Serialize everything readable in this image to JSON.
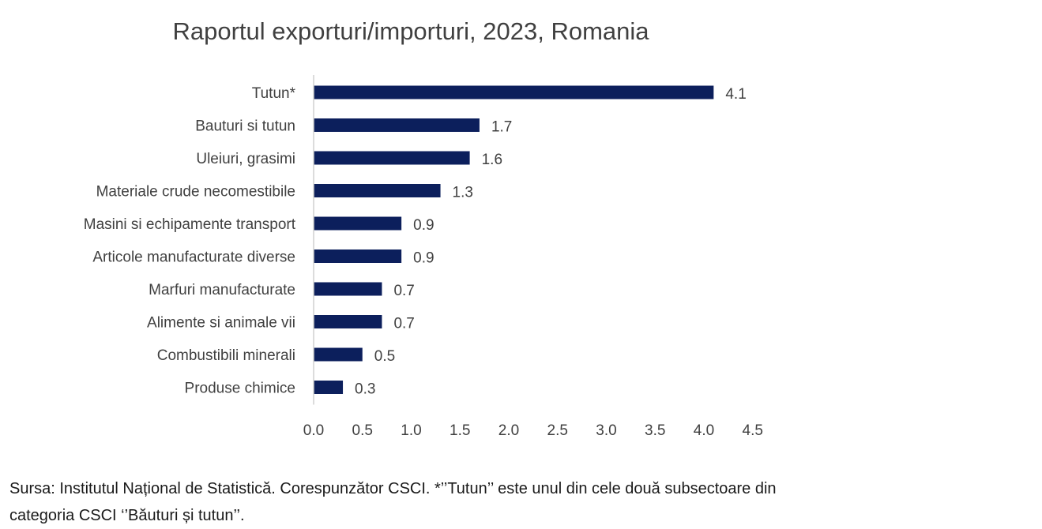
{
  "chart_data": {
    "type": "bar",
    "orientation": "horizontal",
    "title": "Raportul exporturi/importuri, 2023, Romania",
    "categories": [
      "Tutun*",
      "Bauturi si tutun",
      "Uleiuri, grasimi",
      "Materiale crude necomestibile",
      "Masini si echipamente transport",
      "Articole manufacturate diverse",
      "Marfuri manufacturate",
      "Alimente si animale vii",
      "Combustibili minerali",
      "Produse chimice"
    ],
    "values": [
      4.1,
      1.7,
      1.6,
      1.3,
      0.9,
      0.9,
      0.7,
      0.7,
      0.5,
      0.3
    ],
    "value_labels": [
      "4.1",
      "1.7",
      "1.6",
      "1.3",
      "0.9",
      "0.9",
      "0.7",
      "0.7",
      "0.5",
      "0.3"
    ],
    "xlim": [
      0,
      4.5
    ],
    "xticks": [
      "0.0",
      "0.5",
      "1.0",
      "1.5",
      "2.0",
      "2.5",
      "3.0",
      "3.5",
      "4.0",
      "4.5"
    ],
    "xlabel": "",
    "ylabel": "",
    "grid": false,
    "legend": "none",
    "bar_color": "#0c1f5c"
  },
  "source": {
    "line1": "Sursa: Institutul Național de Statistică. Corespunzător CSCI. *’’Tutun’’ este unul din cele două subsectoare din",
    "line2": "categoria CSCI ‘’Băuturi și tutun’’."
  }
}
